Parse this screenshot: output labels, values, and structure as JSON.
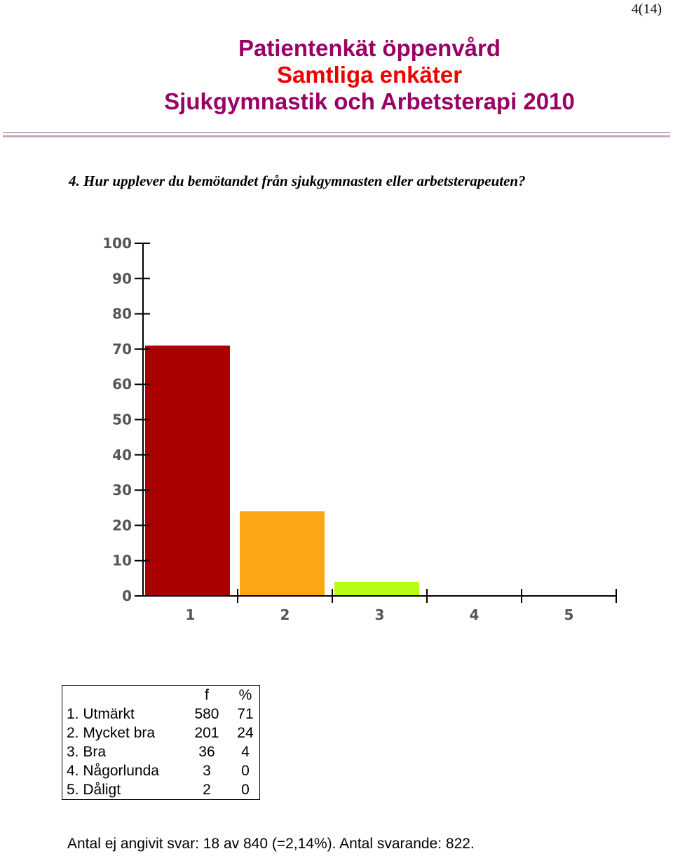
{
  "page_number": "4(14)",
  "header": {
    "line1": "Patientenkät öppenvård",
    "line2": "Samtliga enkäter",
    "line3": "Sjukgymnastik och Arbetsterapi 2010"
  },
  "question": "4. Hur upplever du bemötandet från sjukgymnasten eller arbetsterapeuten?",
  "colors": {
    "bar1": "#aa0000",
    "bar2": "#fca614",
    "bar3": "#b4ff14",
    "title_accent": "#990066",
    "title_red": "#ee0000"
  },
  "chart_data": {
    "type": "bar",
    "categories": [
      "1",
      "2",
      "3",
      "4",
      "5"
    ],
    "values": [
      71,
      24,
      4,
      0,
      0
    ],
    "ylim": [
      0,
      100
    ],
    "yticks": [
      0,
      10,
      20,
      30,
      40,
      50,
      60,
      70,
      80,
      90,
      100
    ],
    "bar_colors": [
      "#aa0000",
      "#fca614",
      "#b4ff14",
      "#cccccc",
      "#cccccc"
    ],
    "grid": false
  },
  "table": {
    "headers": [
      "",
      "f",
      "%"
    ],
    "rows": [
      [
        "1. Utmärkt",
        "580",
        "71"
      ],
      [
        "2. Mycket bra",
        "201",
        "24"
      ],
      [
        "3. Bra",
        "36",
        "4"
      ],
      [
        "4. Någorlunda",
        "3",
        "0"
      ],
      [
        "5. Dåligt",
        "2",
        "0"
      ]
    ]
  },
  "footer": "Antal ej angivit svar: 18 av 840 (=2,14%). Antal svarande:  822."
}
